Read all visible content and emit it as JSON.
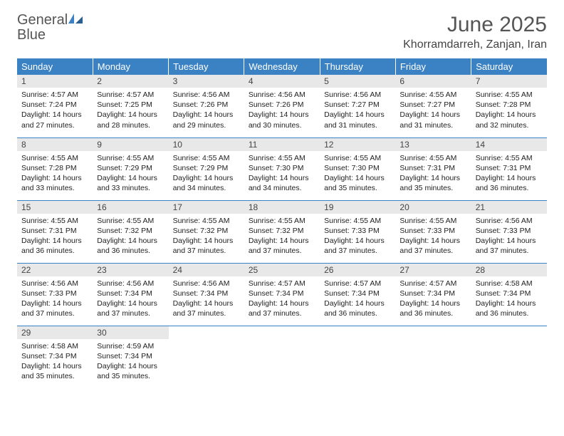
{
  "logo": {
    "word1": "General",
    "word2": "Blue"
  },
  "title": "June 2025",
  "location": "Khorramdarreh, Zanjan, Iran",
  "colors": {
    "header_bg": "#3b82c4",
    "header_text": "#ffffff",
    "daynum_bg": "#e8e8e8",
    "rule": "#3b82c4",
    "logo_gray": "#555555",
    "logo_blue": "#3b82c4"
  },
  "weekdays": [
    "Sunday",
    "Monday",
    "Tuesday",
    "Wednesday",
    "Thursday",
    "Friday",
    "Saturday"
  ],
  "days": [
    {
      "n": 1,
      "sunrise": "4:57 AM",
      "sunset": "7:24 PM",
      "daylight": "14 hours and 27 minutes."
    },
    {
      "n": 2,
      "sunrise": "4:57 AM",
      "sunset": "7:25 PM",
      "daylight": "14 hours and 28 minutes."
    },
    {
      "n": 3,
      "sunrise": "4:56 AM",
      "sunset": "7:26 PM",
      "daylight": "14 hours and 29 minutes."
    },
    {
      "n": 4,
      "sunrise": "4:56 AM",
      "sunset": "7:26 PM",
      "daylight": "14 hours and 30 minutes."
    },
    {
      "n": 5,
      "sunrise": "4:56 AM",
      "sunset": "7:27 PM",
      "daylight": "14 hours and 31 minutes."
    },
    {
      "n": 6,
      "sunrise": "4:55 AM",
      "sunset": "7:27 PM",
      "daylight": "14 hours and 31 minutes."
    },
    {
      "n": 7,
      "sunrise": "4:55 AM",
      "sunset": "7:28 PM",
      "daylight": "14 hours and 32 minutes."
    },
    {
      "n": 8,
      "sunrise": "4:55 AM",
      "sunset": "7:28 PM",
      "daylight": "14 hours and 33 minutes."
    },
    {
      "n": 9,
      "sunrise": "4:55 AM",
      "sunset": "7:29 PM",
      "daylight": "14 hours and 33 minutes."
    },
    {
      "n": 10,
      "sunrise": "4:55 AM",
      "sunset": "7:29 PM",
      "daylight": "14 hours and 34 minutes."
    },
    {
      "n": 11,
      "sunrise": "4:55 AM",
      "sunset": "7:30 PM",
      "daylight": "14 hours and 34 minutes."
    },
    {
      "n": 12,
      "sunrise": "4:55 AM",
      "sunset": "7:30 PM",
      "daylight": "14 hours and 35 minutes."
    },
    {
      "n": 13,
      "sunrise": "4:55 AM",
      "sunset": "7:31 PM",
      "daylight": "14 hours and 35 minutes."
    },
    {
      "n": 14,
      "sunrise": "4:55 AM",
      "sunset": "7:31 PM",
      "daylight": "14 hours and 36 minutes."
    },
    {
      "n": 15,
      "sunrise": "4:55 AM",
      "sunset": "7:31 PM",
      "daylight": "14 hours and 36 minutes."
    },
    {
      "n": 16,
      "sunrise": "4:55 AM",
      "sunset": "7:32 PM",
      "daylight": "14 hours and 36 minutes."
    },
    {
      "n": 17,
      "sunrise": "4:55 AM",
      "sunset": "7:32 PM",
      "daylight": "14 hours and 37 minutes."
    },
    {
      "n": 18,
      "sunrise": "4:55 AM",
      "sunset": "7:32 PM",
      "daylight": "14 hours and 37 minutes."
    },
    {
      "n": 19,
      "sunrise": "4:55 AM",
      "sunset": "7:33 PM",
      "daylight": "14 hours and 37 minutes."
    },
    {
      "n": 20,
      "sunrise": "4:55 AM",
      "sunset": "7:33 PM",
      "daylight": "14 hours and 37 minutes."
    },
    {
      "n": 21,
      "sunrise": "4:56 AM",
      "sunset": "7:33 PM",
      "daylight": "14 hours and 37 minutes."
    },
    {
      "n": 22,
      "sunrise": "4:56 AM",
      "sunset": "7:33 PM",
      "daylight": "14 hours and 37 minutes."
    },
    {
      "n": 23,
      "sunrise": "4:56 AM",
      "sunset": "7:34 PM",
      "daylight": "14 hours and 37 minutes."
    },
    {
      "n": 24,
      "sunrise": "4:56 AM",
      "sunset": "7:34 PM",
      "daylight": "14 hours and 37 minutes."
    },
    {
      "n": 25,
      "sunrise": "4:57 AM",
      "sunset": "7:34 PM",
      "daylight": "14 hours and 37 minutes."
    },
    {
      "n": 26,
      "sunrise": "4:57 AM",
      "sunset": "7:34 PM",
      "daylight": "14 hours and 36 minutes."
    },
    {
      "n": 27,
      "sunrise": "4:57 AM",
      "sunset": "7:34 PM",
      "daylight": "14 hours and 36 minutes."
    },
    {
      "n": 28,
      "sunrise": "4:58 AM",
      "sunset": "7:34 PM",
      "daylight": "14 hours and 36 minutes."
    },
    {
      "n": 29,
      "sunrise": "4:58 AM",
      "sunset": "7:34 PM",
      "daylight": "14 hours and 35 minutes."
    },
    {
      "n": 30,
      "sunrise": "4:59 AM",
      "sunset": "7:34 PM",
      "daylight": "14 hours and 35 minutes."
    }
  ],
  "labels": {
    "sunrise": "Sunrise:",
    "sunset": "Sunset:",
    "daylight": "Daylight:"
  }
}
